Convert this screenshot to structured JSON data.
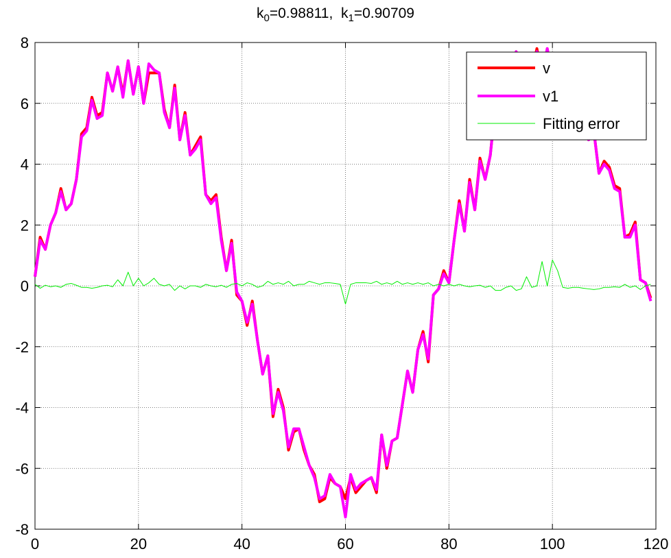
{
  "chart_data": {
    "type": "line",
    "title": {
      "k0_symbol": "k",
      "k0_sub": "0",
      "k0_value": "=0.98811,",
      "k1_symbol": "k",
      "k1_sub": "1",
      "k1_value": "=0.90709"
    },
    "xlabel": "",
    "ylabel": "",
    "xlim": [
      0,
      120
    ],
    "ylim": [
      -8,
      8
    ],
    "xticks": [
      0,
      20,
      40,
      60,
      80,
      100,
      120
    ],
    "yticks": [
      -8,
      -6,
      -4,
      -2,
      0,
      2,
      4,
      6,
      8
    ],
    "grid": true,
    "legend_position": "top-right",
    "series": [
      {
        "name": "v",
        "color": "#ff0000",
        "style": "thick",
        "x": [
          0,
          1,
          2,
          3,
          4,
          5,
          6,
          7,
          8,
          9,
          10,
          11,
          12,
          13,
          14,
          15,
          16,
          17,
          18,
          19,
          20,
          21,
          22,
          23,
          24,
          25,
          26,
          27,
          28,
          29,
          30,
          31,
          32,
          33,
          34,
          35,
          36,
          37,
          38,
          39,
          40,
          41,
          42,
          43,
          44,
          45,
          46,
          47,
          48,
          49,
          50,
          51,
          52,
          53,
          54,
          55,
          56,
          57,
          58,
          59,
          60,
          61,
          62,
          63,
          64,
          65,
          66,
          67,
          68,
          69,
          70,
          71,
          72,
          73,
          74,
          75,
          76,
          77,
          78,
          79,
          80,
          81,
          82,
          83,
          84,
          85,
          86,
          87,
          88,
          89,
          90,
          91,
          92,
          93,
          94,
          95,
          96,
          97,
          98,
          99,
          100,
          101,
          102,
          103,
          104,
          105,
          106,
          107,
          108,
          109,
          110,
          111,
          112,
          113,
          114,
          115,
          116,
          117,
          118,
          119
        ],
        "values": [
          0.3,
          1.6,
          1.2,
          2.0,
          2.4,
          3.2,
          2.5,
          2.7,
          3.5,
          5.0,
          5.2,
          6.2,
          5.6,
          5.7,
          7.0,
          6.4,
          7.2,
          6.3,
          7.4,
          6.3,
          7.2,
          6.0,
          7.0,
          7.0,
          7.0,
          5.8,
          5.2,
          6.6,
          4.8,
          5.7,
          4.3,
          4.6,
          4.9,
          3.0,
          2.8,
          3.0,
          1.6,
          0.5,
          1.5,
          -0.3,
          -0.5,
          -1.3,
          -0.5,
          -1.8,
          -2.9,
          -2.3,
          -4.3,
          -3.4,
          -4.0,
          -5.4,
          -4.8,
          -4.7,
          -5.4,
          -5.9,
          -6.2,
          -7.1,
          -7.0,
          -6.3,
          -6.5,
          -6.6,
          -7.0,
          -6.3,
          -6.8,
          -6.6,
          -6.4,
          -6.3,
          -6.8,
          -4.9,
          -6.0,
          -5.1,
          -5.0,
          -3.9,
          -2.8,
          -3.5,
          -2.1,
          -1.5,
          -2.5,
          -0.3,
          -0.1,
          0.5,
          0.1,
          1.5,
          2.8,
          1.8,
          3.5,
          2.5,
          4.2,
          3.5,
          4.3,
          6.0,
          6.2,
          7.0,
          6.9,
          7.7,
          7.0,
          7.2,
          7.0,
          7.8,
          6.9,
          7.8,
          6.9,
          7.5,
          6.5,
          6.6,
          6.8,
          6.5,
          5.6,
          4.8,
          5.1,
          3.7,
          4.1,
          3.9,
          3.3,
          3.2,
          1.6,
          1.7,
          2.1,
          0.2,
          0.1,
          -0.4
        ]
      },
      {
        "name": "v1",
        "color": "#ff00ff",
        "style": "thick",
        "x": [
          0,
          1,
          2,
          3,
          4,
          5,
          6,
          7,
          8,
          9,
          10,
          11,
          12,
          13,
          14,
          15,
          16,
          17,
          18,
          19,
          20,
          21,
          22,
          23,
          24,
          25,
          26,
          27,
          28,
          29,
          30,
          31,
          32,
          33,
          34,
          35,
          36,
          37,
          38,
          39,
          40,
          41,
          42,
          43,
          44,
          45,
          46,
          47,
          48,
          49,
          50,
          51,
          52,
          53,
          54,
          55,
          56,
          57,
          58,
          59,
          60,
          61,
          62,
          63,
          64,
          65,
          66,
          67,
          68,
          69,
          70,
          71,
          72,
          73,
          74,
          75,
          76,
          77,
          78,
          79,
          80,
          81,
          82,
          83,
          84,
          85,
          86,
          87,
          88,
          89,
          90,
          91,
          92,
          93,
          94,
          95,
          96,
          97,
          98,
          99,
          100,
          101,
          102,
          103,
          104,
          105,
          106,
          107,
          108,
          109,
          110,
          111,
          112,
          113,
          114,
          115,
          116,
          117,
          118,
          119
        ],
        "values": [
          0.3,
          1.5,
          1.2,
          2.0,
          2.4,
          3.1,
          2.5,
          2.7,
          3.5,
          4.9,
          5.1,
          6.1,
          5.5,
          5.6,
          7.0,
          6.4,
          7.2,
          6.2,
          7.4,
          6.3,
          7.2,
          6.0,
          7.3,
          7.1,
          7.0,
          5.7,
          5.2,
          6.5,
          4.8,
          5.6,
          4.3,
          4.5,
          4.8,
          3.0,
          2.7,
          2.9,
          1.5,
          0.5,
          1.4,
          -0.2,
          -0.5,
          -1.2,
          -0.6,
          -1.8,
          -2.9,
          -2.3,
          -4.2,
          -3.5,
          -4.1,
          -5.3,
          -4.7,
          -4.7,
          -5.3,
          -5.9,
          -6.3,
          -7.0,
          -6.9,
          -6.2,
          -6.5,
          -6.6,
          -7.6,
          -6.2,
          -6.7,
          -6.5,
          -6.4,
          -6.3,
          -6.7,
          -4.9,
          -5.9,
          -5.1,
          -5.0,
          -3.9,
          -2.8,
          -3.5,
          -2.1,
          -1.6,
          -2.4,
          -0.3,
          -0.1,
          0.4,
          0.1,
          1.5,
          2.7,
          1.8,
          3.4,
          2.5,
          4.1,
          3.5,
          4.3,
          6.0,
          6.2,
          7.0,
          6.9,
          7.7,
          7.0,
          7.2,
          7.0,
          7.7,
          6.9,
          7.8,
          6.9,
          7.5,
          6.5,
          6.6,
          6.8,
          6.5,
          5.6,
          4.8,
          5.1,
          3.7,
          4.0,
          3.8,
          3.2,
          3.1,
          1.6,
          1.6,
          2.0,
          0.2,
          0.1,
          -0.5
        ]
      },
      {
        "name": "Fitting error",
        "color": "#00ee00",
        "style": "thin",
        "x": [
          0,
          1,
          2,
          3,
          4,
          5,
          6,
          7,
          8,
          9,
          10,
          11,
          12,
          13,
          14,
          15,
          16,
          17,
          18,
          19,
          20,
          21,
          22,
          23,
          24,
          25,
          26,
          27,
          28,
          29,
          30,
          31,
          32,
          33,
          34,
          35,
          36,
          37,
          38,
          39,
          40,
          41,
          42,
          43,
          44,
          45,
          46,
          47,
          48,
          49,
          50,
          51,
          52,
          53,
          54,
          55,
          56,
          57,
          58,
          59,
          60,
          61,
          62,
          63,
          64,
          65,
          66,
          67,
          68,
          69,
          70,
          71,
          72,
          73,
          74,
          75,
          76,
          77,
          78,
          79,
          80,
          81,
          82,
          83,
          84,
          85,
          86,
          87,
          88,
          89,
          90,
          91,
          92,
          93,
          94,
          95,
          96,
          97,
          98,
          99,
          100,
          101,
          102,
          103,
          104,
          105,
          106,
          107,
          108,
          109,
          110,
          111,
          112,
          113,
          114,
          115,
          116,
          117,
          118,
          119
        ],
        "values": [
          0.05,
          -0.08,
          0.02,
          -0.03,
          0.0,
          -0.05,
          0.05,
          0.08,
          0.02,
          -0.05,
          -0.05,
          -0.08,
          -0.05,
          0.0,
          0.02,
          -0.03,
          0.2,
          0.0,
          0.45,
          0.0,
          0.25,
          0.0,
          0.1,
          0.25,
          0.05,
          0.0,
          0.05,
          -0.15,
          0.0,
          -0.1,
          0.0,
          0.0,
          -0.05,
          0.05,
          0.0,
          -0.03,
          0.02,
          -0.05,
          0.05,
          0.08,
          0.0,
          0.1,
          0.05,
          -0.05,
          0.0,
          0.15,
          0.05,
          0.1,
          0.05,
          0.15,
          0.0,
          0.05,
          0.05,
          0.15,
          0.1,
          0.05,
          0.1,
          0.1,
          0.08,
          0.05,
          -0.6,
          0.05,
          0.1,
          0.1,
          0.1,
          0.08,
          0.15,
          0.05,
          0.1,
          0.05,
          0.15,
          0.05,
          0.1,
          0.05,
          0.1,
          0.05,
          0.1,
          0.0,
          0.05,
          0.0,
          0.05,
          0.0,
          0.05,
          0.0,
          -0.03,
          0.0,
          0.02,
          -0.05,
          0.0,
          -0.15,
          -0.15,
          -0.05,
          0.0,
          -0.15,
          -0.1,
          0.3,
          -0.05,
          0.0,
          0.8,
          0.0,
          0.85,
          0.5,
          -0.05,
          -0.08,
          -0.05,
          -0.05,
          -0.08,
          -0.1,
          -0.12,
          -0.1,
          -0.05,
          -0.05,
          -0.03,
          -0.05,
          0.05,
          -0.05,
          0.0,
          -0.12,
          0.0,
          0.05
        ]
      }
    ]
  }
}
